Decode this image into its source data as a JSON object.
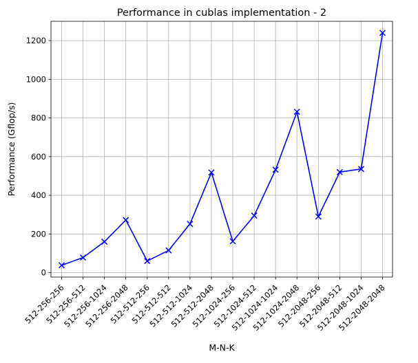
{
  "chart_data": {
    "type": "line",
    "title": "Performance in cublas implementation - 2",
    "xlabel": "M-N-K",
    "ylabel": "Performance (Gflop/s)",
    "categories": [
      "512-256-256",
      "512-256-512",
      "512-256-1024",
      "512-256-2048",
      "512-512-256",
      "512-512-512",
      "512-512-1024",
      "512-512-2048",
      "512-1024-256",
      "512-1024-512",
      "512-1024-1024",
      "512-1024-2048",
      "512-2048-256",
      "512-2048-512",
      "512-2048-1024",
      "512-2048-2048"
    ],
    "values": [
      38,
      78,
      160,
      272,
      60,
      115,
      252,
      518,
      162,
      295,
      532,
      832,
      290,
      520,
      536,
      1240
    ],
    "ylim": [
      -23,
      1300
    ],
    "yticks": [
      0,
      200,
      400,
      600,
      800,
      1000,
      1200
    ],
    "grid": true,
    "marker": "x",
    "color": "#0000ff"
  }
}
